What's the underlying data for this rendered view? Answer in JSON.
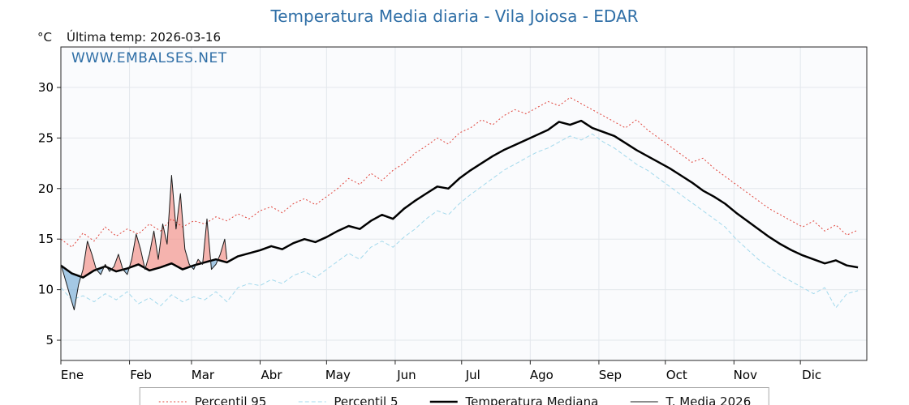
{
  "header": {
    "title": "Temperatura Media diaria - Vila Joiosa - EDAR",
    "unit_label": "°C",
    "last_temp_label": "Última temp: 2026-03-16",
    "watermark": "WWW.EMBALSES.NET"
  },
  "colors": {
    "title": "#2e6ea6",
    "watermark": "#2e6ea6",
    "axis": "#262626",
    "tick_text": "#000000"
  },
  "chart_data": {
    "type": "line",
    "title": "Temperatura Media diaria - Vila Joiosa - EDAR",
    "ylabel": "°C",
    "xlabel": "",
    "xlim": [
      0,
      364
    ],
    "ylim": [
      3,
      34
    ],
    "yticks": [
      5,
      10,
      15,
      20,
      25,
      30
    ],
    "grid": true,
    "grid_color": "#e3e7ec",
    "plot_bg": "#fafbfd",
    "fill_above": "#f2948c",
    "fill_below": "#7fb2d9",
    "legend_position": "bottom",
    "months": [
      {
        "label": "Ene",
        "day": 0
      },
      {
        "label": "Feb",
        "day": 31
      },
      {
        "label": "Mar",
        "day": 59
      },
      {
        "label": "Abr",
        "day": 90
      },
      {
        "label": "May",
        "day": 120
      },
      {
        "label": "Jun",
        "day": 151
      },
      {
        "label": "Jul",
        "day": 181
      },
      {
        "label": "Ago",
        "day": 212
      },
      {
        "label": "Sep",
        "day": 243
      },
      {
        "label": "Oct",
        "day": 273
      },
      {
        "label": "Nov",
        "day": 304
      },
      {
        "label": "Dic",
        "day": 334
      }
    ],
    "x": [
      0,
      5,
      10,
      15,
      20,
      25,
      30,
      35,
      40,
      45,
      50,
      55,
      60,
      65,
      70,
      75,
      80,
      85,
      90,
      95,
      100,
      105,
      110,
      115,
      120,
      125,
      130,
      135,
      140,
      145,
      150,
      155,
      160,
      165,
      170,
      175,
      180,
      185,
      190,
      195,
      200,
      205,
      210,
      215,
      220,
      225,
      230,
      235,
      240,
      245,
      250,
      255,
      260,
      265,
      270,
      275,
      280,
      285,
      290,
      295,
      300,
      305,
      310,
      315,
      320,
      325,
      330,
      335,
      340,
      345,
      350,
      355,
      360
    ],
    "series": [
      {
        "name": "Percentil 95",
        "color": "#e0433a",
        "width": 1,
        "dash": "2,2.6",
        "y": [
          15.0,
          14.2,
          15.6,
          14.8,
          16.2,
          15.3,
          16.0,
          15.5,
          16.5,
          15.8,
          17.0,
          16.2,
          16.8,
          16.5,
          17.2,
          16.8,
          17.5,
          17.0,
          17.8,
          18.2,
          17.6,
          18.5,
          19.0,
          18.4,
          19.2,
          20.0,
          21.0,
          20.4,
          21.5,
          20.8,
          21.8,
          22.5,
          23.5,
          24.2,
          25.0,
          24.4,
          25.5,
          26.0,
          26.8,
          26.3,
          27.2,
          27.8,
          27.4,
          28.0,
          28.6,
          28.2,
          29.0,
          28.4,
          27.8,
          27.2,
          26.6,
          26.0,
          26.8,
          25.8,
          25.0,
          24.2,
          23.4,
          22.6,
          23.0,
          22.0,
          21.2,
          20.4,
          19.6,
          18.8,
          18.0,
          17.4,
          16.8,
          16.2,
          16.8,
          15.8,
          16.4,
          15.4,
          15.9
        ]
      },
      {
        "name": "Percentil 5",
        "color": "#a3d9ec",
        "width": 1,
        "dash": "5,3",
        "y": [
          10.2,
          9.0,
          9.4,
          8.8,
          9.6,
          9.0,
          9.8,
          8.6,
          9.2,
          8.4,
          9.5,
          8.8,
          9.3,
          9.0,
          9.8,
          8.8,
          10.2,
          10.6,
          10.4,
          11.0,
          10.6,
          11.4,
          11.8,
          11.2,
          12.0,
          12.8,
          13.6,
          13.0,
          14.2,
          14.8,
          14.2,
          15.2,
          16.0,
          17.0,
          17.8,
          17.4,
          18.5,
          19.4,
          20.2,
          21.0,
          21.8,
          22.4,
          23.0,
          23.6,
          24.0,
          24.6,
          25.2,
          24.8,
          25.4,
          24.6,
          24.0,
          23.2,
          22.4,
          21.8,
          21.0,
          20.2,
          19.4,
          18.6,
          17.8,
          17.0,
          16.2,
          15.0,
          14.0,
          13.0,
          12.2,
          11.4,
          10.8,
          10.2,
          9.6,
          10.2,
          8.2,
          9.6,
          9.9
        ]
      },
      {
        "name": "Temperatura Mediana",
        "color": "#000000",
        "width": 2.5,
        "y": [
          12.4,
          11.6,
          11.2,
          11.9,
          12.3,
          11.8,
          12.1,
          12.5,
          11.9,
          12.2,
          12.6,
          12.0,
          12.4,
          12.7,
          13.0,
          12.7,
          13.3,
          13.6,
          13.9,
          14.3,
          14.0,
          14.6,
          15.0,
          14.7,
          15.2,
          15.8,
          16.3,
          16.0,
          16.8,
          17.4,
          17.0,
          18.0,
          18.8,
          19.5,
          20.2,
          20.0,
          21.0,
          21.8,
          22.5,
          23.2,
          23.8,
          24.3,
          24.8,
          25.3,
          25.8,
          26.6,
          26.3,
          26.7,
          26.0,
          25.6,
          25.2,
          24.5,
          23.8,
          23.2,
          22.6,
          22.0,
          21.3,
          20.6,
          19.8,
          19.2,
          18.5,
          17.6,
          16.8,
          16.0,
          15.2,
          14.5,
          13.9,
          13.4,
          13.0,
          12.6,
          12.9,
          12.4,
          12.2
        ]
      },
      {
        "name": "T. Media 2026",
        "color": "#1a1a1a",
        "width": 1,
        "x": [
          0,
          2,
          4,
          6,
          8,
          10,
          12,
          14,
          16,
          18,
          20,
          22,
          24,
          26,
          28,
          30,
          32,
          34,
          36,
          38,
          40,
          42,
          44,
          46,
          48,
          50,
          52,
          54,
          56,
          58,
          60,
          62,
          64,
          66,
          68,
          70,
          72,
          74,
          75
        ],
        "y": [
          12.5,
          11.0,
          9.5,
          8.0,
          10.5,
          12.0,
          14.8,
          13.5,
          12.0,
          11.5,
          12.5,
          11.8,
          12.3,
          13.5,
          12.0,
          11.5,
          13.0,
          15.5,
          14.0,
          12.0,
          13.5,
          15.8,
          13.0,
          16.5,
          14.5,
          21.3,
          16.0,
          19.5,
          14.0,
          12.5,
          12.0,
          13.0,
          12.5,
          17.0,
          12.0,
          12.5,
          13.5,
          15.0,
          13.0
        ]
      }
    ]
  }
}
